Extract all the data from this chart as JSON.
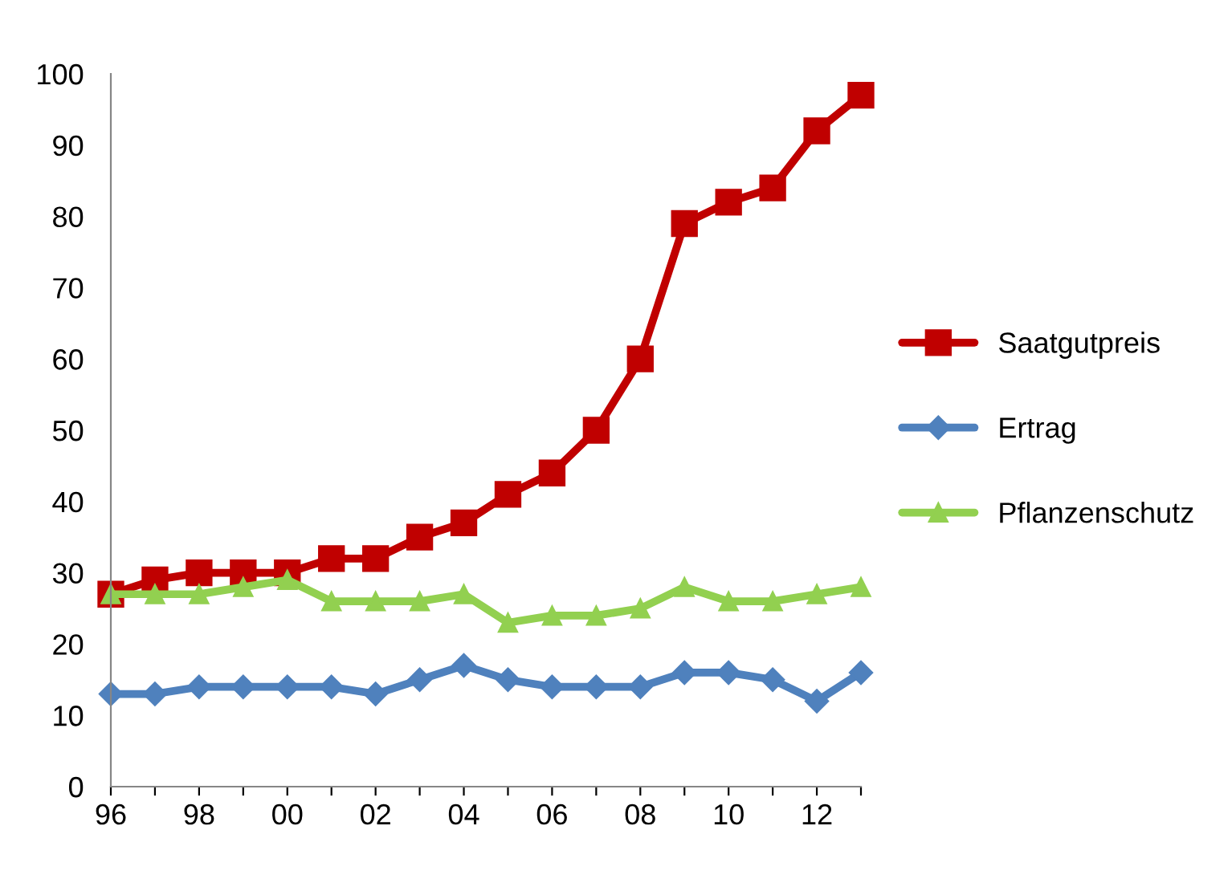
{
  "chart_data": {
    "type": "line",
    "categories": [
      "96",
      null,
      "98",
      null,
      "00",
      null,
      "02",
      null,
      "04",
      null,
      "06",
      null,
      "08",
      null,
      "10",
      null,
      "12",
      null
    ],
    "series": [
      {
        "name": "Saatgutpreis",
        "color": "#c00000",
        "marker": "square",
        "values": [
          27,
          29,
          30,
          30,
          30,
          32,
          32,
          35,
          37,
          41,
          44,
          50,
          60,
          79,
          82,
          84,
          92,
          97
        ]
      },
      {
        "name": "Ertrag",
        "color": "#4f81bd",
        "marker": "diamond",
        "values": [
          13,
          13,
          14,
          14,
          14,
          14,
          13,
          15,
          17,
          15,
          14,
          14,
          14,
          16,
          16,
          15,
          12,
          16
        ]
      },
      {
        "name": "Pflanzenschutz",
        "color": "#92d050",
        "marker": "triangle",
        "values": [
          27,
          27,
          27,
          28,
          29,
          26,
          26,
          26,
          27,
          23,
          24,
          24,
          25,
          28,
          26,
          26,
          27,
          28
        ]
      }
    ],
    "ylim": [
      0,
      100
    ],
    "yticks": [
      0,
      10,
      20,
      30,
      40,
      50,
      60,
      70,
      80,
      90,
      100
    ],
    "grid": false,
    "legend": "right",
    "line_style": "solid"
  }
}
